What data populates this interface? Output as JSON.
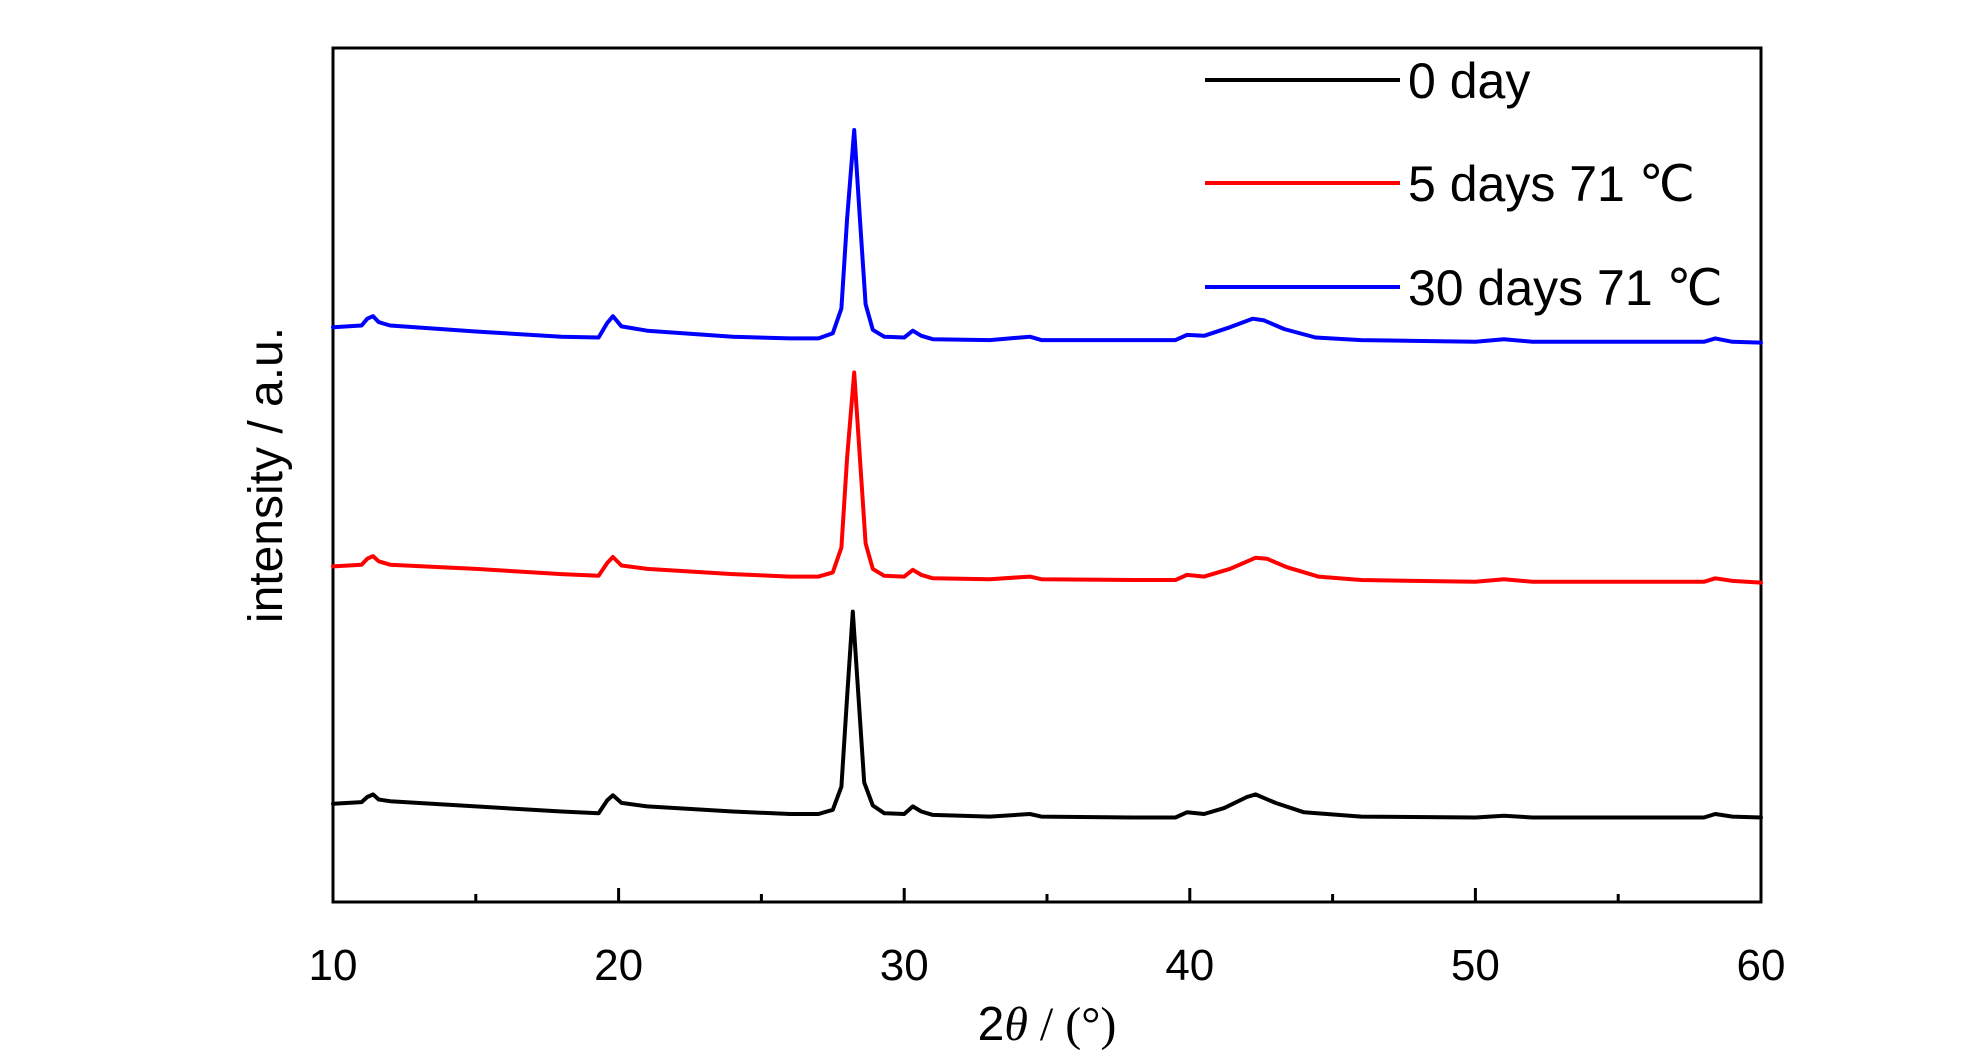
{
  "chart_data": {
    "type": "line",
    "title": "",
    "xlabel_prefix": "2",
    "xlabel_symbol": "θ",
    "xlabel_suffix": " / (°)",
    "ylabel": "intensity / a.u.",
    "xlim": [
      10,
      60
    ],
    "ylim": [
      0,
      100
    ],
    "xticks": [
      10,
      20,
      30,
      40,
      50,
      60
    ],
    "tick_labels": [
      "10",
      "20",
      "30",
      "40",
      "50",
      "60"
    ],
    "minor_xticks": [
      15,
      25,
      35,
      45,
      55
    ],
    "grid": false,
    "legend_position": "top-right",
    "series": [
      {
        "name": "0 day",
        "color": "#000000",
        "points": [
          [
            10,
            11.5
          ],
          [
            11,
            11.7
          ],
          [
            11.2,
            12.3
          ],
          [
            11.4,
            12.6
          ],
          [
            11.6,
            12.0
          ],
          [
            12,
            11.8
          ],
          [
            15,
            11.2
          ],
          [
            18,
            10.6
          ],
          [
            19.3,
            10.4
          ],
          [
            19.6,
            11.9
          ],
          [
            19.8,
            12.5
          ],
          [
            20.1,
            11.6
          ],
          [
            21,
            11.2
          ],
          [
            24,
            10.6
          ],
          [
            26,
            10.3
          ],
          [
            27,
            10.3
          ],
          [
            27.5,
            10.8
          ],
          [
            27.8,
            13.5
          ],
          [
            28.0,
            24.0
          ],
          [
            28.2,
            34.0
          ],
          [
            28.4,
            24.0
          ],
          [
            28.6,
            14.0
          ],
          [
            28.9,
            11.3
          ],
          [
            29.3,
            10.4
          ],
          [
            30,
            10.3
          ],
          [
            30.3,
            11.2
          ],
          [
            30.6,
            10.6
          ],
          [
            31,
            10.2
          ],
          [
            33,
            10.0
          ],
          [
            34.4,
            10.3
          ],
          [
            34.8,
            10.0
          ],
          [
            38,
            9.9
          ],
          [
            39.5,
            9.9
          ],
          [
            39.9,
            10.5
          ],
          [
            40.5,
            10.3
          ],
          [
            41.2,
            11.0
          ],
          [
            42.0,
            12.3
          ],
          [
            42.3,
            12.6
          ],
          [
            43.0,
            11.6
          ],
          [
            44,
            10.5
          ],
          [
            46,
            10.0
          ],
          [
            50,
            9.9
          ],
          [
            51,
            10.1
          ],
          [
            52,
            9.9
          ],
          [
            58,
            9.9
          ],
          [
            58.4,
            10.3
          ],
          [
            59,
            10.0
          ],
          [
            60,
            9.9
          ]
        ]
      },
      {
        "name": "5 days 71 ℃",
        "color": "#ff0000",
        "points": [
          [
            10,
            39.3
          ],
          [
            11,
            39.5
          ],
          [
            11.2,
            40.2
          ],
          [
            11.4,
            40.5
          ],
          [
            11.6,
            39.9
          ],
          [
            12,
            39.5
          ],
          [
            15,
            39.0
          ],
          [
            18,
            38.4
          ],
          [
            19.3,
            38.2
          ],
          [
            19.6,
            39.7
          ],
          [
            19.8,
            40.4
          ],
          [
            20.1,
            39.4
          ],
          [
            21,
            39.0
          ],
          [
            24,
            38.4
          ],
          [
            26,
            38.1
          ],
          [
            27,
            38.1
          ],
          [
            27.5,
            38.6
          ],
          [
            27.8,
            41.5
          ],
          [
            28.0,
            52.0
          ],
          [
            28.25,
            62.0
          ],
          [
            28.45,
            52.0
          ],
          [
            28.65,
            42.0
          ],
          [
            28.9,
            39.0
          ],
          [
            29.3,
            38.2
          ],
          [
            30,
            38.1
          ],
          [
            30.3,
            38.9
          ],
          [
            30.6,
            38.3
          ],
          [
            31,
            37.9
          ],
          [
            33,
            37.8
          ],
          [
            34.4,
            38.1
          ],
          [
            34.8,
            37.8
          ],
          [
            38,
            37.7
          ],
          [
            39.5,
            37.7
          ],
          [
            39.9,
            38.3
          ],
          [
            40.5,
            38.1
          ],
          [
            41.4,
            39.0
          ],
          [
            42.3,
            40.3
          ],
          [
            42.7,
            40.2
          ],
          [
            43.4,
            39.2
          ],
          [
            44.5,
            38.1
          ],
          [
            46,
            37.7
          ],
          [
            50,
            37.5
          ],
          [
            51,
            37.8
          ],
          [
            52,
            37.5
          ],
          [
            58,
            37.5
          ],
          [
            58.4,
            37.9
          ],
          [
            59,
            37.6
          ],
          [
            60,
            37.4
          ]
        ]
      },
      {
        "name": "30 days 71 ℃",
        "color": "#0000ff",
        "points": [
          [
            10,
            67.3
          ],
          [
            11,
            67.5
          ],
          [
            11.2,
            68.3
          ],
          [
            11.4,
            68.6
          ],
          [
            11.6,
            67.9
          ],
          [
            12,
            67.5
          ],
          [
            15,
            66.8
          ],
          [
            18,
            66.2
          ],
          [
            19.3,
            66.1
          ],
          [
            19.6,
            67.8
          ],
          [
            19.8,
            68.6
          ],
          [
            20.1,
            67.4
          ],
          [
            21,
            66.9
          ],
          [
            24,
            66.2
          ],
          [
            26,
            66.0
          ],
          [
            27,
            66.0
          ],
          [
            27.5,
            66.6
          ],
          [
            27.8,
            69.5
          ],
          [
            28.0,
            80.0
          ],
          [
            28.25,
            90.4
          ],
          [
            28.45,
            80.0
          ],
          [
            28.65,
            70.0
          ],
          [
            28.9,
            67.0
          ],
          [
            29.3,
            66.2
          ],
          [
            30,
            66.1
          ],
          [
            30.3,
            66.9
          ],
          [
            30.6,
            66.3
          ],
          [
            31,
            65.9
          ],
          [
            33,
            65.8
          ],
          [
            34.4,
            66.2
          ],
          [
            34.8,
            65.8
          ],
          [
            38,
            65.8
          ],
          [
            39.5,
            65.8
          ],
          [
            39.9,
            66.4
          ],
          [
            40.5,
            66.3
          ],
          [
            41.4,
            67.3
          ],
          [
            42.2,
            68.3
          ],
          [
            42.6,
            68.1
          ],
          [
            43.3,
            67.1
          ],
          [
            44.4,
            66.1
          ],
          [
            46,
            65.8
          ],
          [
            50,
            65.6
          ],
          [
            51,
            65.9
          ],
          [
            52,
            65.6
          ],
          [
            58,
            65.6
          ],
          [
            58.4,
            66.0
          ],
          [
            59,
            65.6
          ],
          [
            60,
            65.5
          ]
        ]
      }
    ]
  }
}
